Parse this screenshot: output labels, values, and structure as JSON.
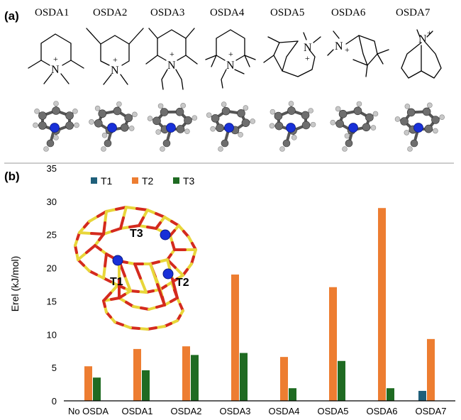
{
  "panel_a": {
    "label": "(a)",
    "osda_labels": [
      "OSDA1",
      "OSDA2",
      "OSDA3",
      "OSDA4",
      "OSDA5",
      "OSDA6",
      "OSDA7"
    ],
    "atom_symbol": "N",
    "charge_symbol": "+"
  },
  "panel_b": {
    "label": "(b)",
    "site_labels": [
      "T1",
      "T2",
      "T3"
    ]
  },
  "colors": {
    "T1": "#1f5f7a",
    "T2": "#ed7d31",
    "T3": "#1f6b22",
    "framework_si": "#e8d63a",
    "framework_o": "#d42a1e",
    "atom_n": "#1830d8",
    "atom_c": "#6e6e6e",
    "atom_h": "#c8c8c8"
  },
  "chart_data": {
    "type": "bar",
    "title": "",
    "xlabel": "",
    "ylabel": "Erel (kJ/mol)",
    "ylim": [
      0,
      35
    ],
    "yticks": [
      0,
      5,
      10,
      15,
      20,
      25,
      30,
      35
    ],
    "grid": false,
    "legend_position": "top-left",
    "categories": [
      "No OSDA",
      "OSDA1",
      "OSDA2",
      "OSDA3",
      "OSDA4",
      "OSDA5",
      "OSDA6",
      "OSDA7"
    ],
    "series": [
      {
        "name": "T1",
        "color": "#1f5f7a",
        "values": [
          0,
          0,
          0,
          0,
          0,
          0,
          0,
          1.5
        ]
      },
      {
        "name": "T2",
        "color": "#ed7d31",
        "values": [
          5.2,
          7.8,
          8.2,
          19.0,
          6.6,
          17.1,
          29.0,
          9.3
        ]
      },
      {
        "name": "T3",
        "color": "#1f6b22",
        "values": [
          3.5,
          4.6,
          6.9,
          7.2,
          1.9,
          6.0,
          1.9,
          0
        ]
      }
    ]
  }
}
